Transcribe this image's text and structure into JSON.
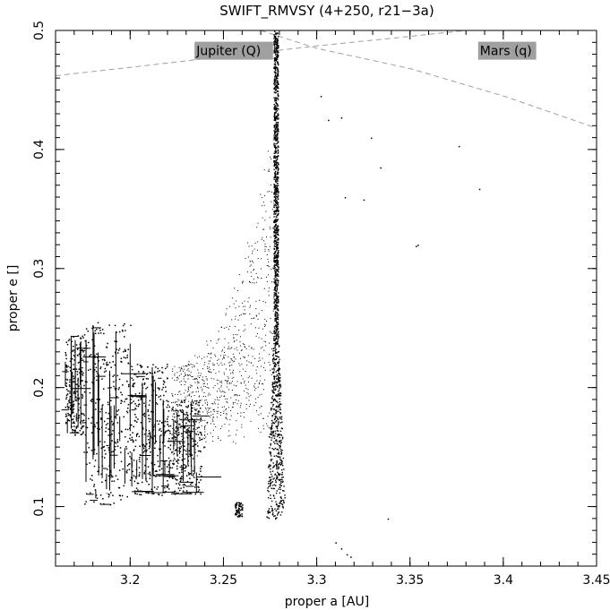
{
  "chart_data": {
    "type": "scatter",
    "title": "SWIFT_RMVSY (4+250, r21−3a)",
    "xlabel": "proper a [AU]",
    "ylabel": "proper e []",
    "xlim": [
      3.16,
      3.45
    ],
    "ylim": [
      0.05,
      0.5
    ],
    "xticks": [
      3.2,
      3.25,
      3.3,
      3.35,
      3.4,
      3.45
    ],
    "xtick_labels": [
      "3.2",
      "3.25",
      "3.3",
      "3.35",
      "3.4",
      "3.45"
    ],
    "yticks": [
      0.1,
      0.2,
      0.3,
      0.4,
      0.5
    ],
    "ytick_labels": [
      "0.1",
      "0.2",
      "0.3",
      "0.4",
      "0.5"
    ],
    "grid": false,
    "point_color": "#000000",
    "reference_lines": [
      {
        "name": "Jupiter (Q)",
        "color": "#a0a0a0",
        "style": "dashed",
        "points": [
          [
            3.16,
            0.462
          ],
          [
            3.2,
            0.469
          ],
          [
            3.25,
            0.478
          ],
          [
            3.3,
            0.487
          ],
          [
            3.35,
            0.495
          ],
          [
            3.38,
            0.5
          ]
        ]
      },
      {
        "name": "Mars (q)",
        "color": "#a0a0a0",
        "style": "dashed",
        "points": [
          [
            3.27,
            0.5
          ],
          [
            3.3,
            0.485
          ],
          [
            3.35,
            0.468
          ],
          [
            3.4,
            0.445
          ],
          [
            3.45,
            0.418
          ]
        ]
      }
    ],
    "annotations": [
      {
        "text": "Jupiter (Q)",
        "x": 3.235,
        "y": 0.483
      },
      {
        "text": "Mars (q)",
        "x": 3.387,
        "y": 0.483
      }
    ],
    "resonance_a": 3.278,
    "resonance_e_range": [
      0.09,
      0.5
    ],
    "clusters": [
      {
        "name": "",
        "a_range": [
          3.165,
          3.175
        ],
        "e_range": [
          0.16,
          0.245
        ],
        "density": 220
      },
      {
        "name": "",
        "a_range": [
          3.175,
          3.2
        ],
        "e_range": [
          0.1,
          0.255
        ],
        "density": 320
      },
      {
        "name": "",
        "a_range": [
          3.2,
          3.22
        ],
        "e_range": [
          0.11,
          0.22
        ],
        "density": 300
      },
      {
        "name": "",
        "a_range": [
          3.22,
          3.238
        ],
        "e_range": [
          0.11,
          0.19
        ],
        "density": 260
      }
    ],
    "scattered_points": [
      [
        3.302,
        0.445
      ],
      [
        3.313,
        0.427
      ],
      [
        3.329,
        0.41
      ],
      [
        3.334,
        0.385
      ],
      [
        3.376,
        0.403
      ],
      [
        3.387,
        0.367
      ],
      [
        3.325,
        0.358
      ],
      [
        3.315,
        0.36
      ],
      [
        3.354,
        0.32
      ],
      [
        3.353,
        0.319
      ],
      [
        3.306,
        0.425
      ],
      [
        3.338,
        0.09
      ],
      [
        3.31,
        0.07
      ],
      [
        3.313,
        0.065
      ],
      [
        3.316,
        0.06
      ],
      [
        3.318,
        0.058
      ]
    ]
  }
}
